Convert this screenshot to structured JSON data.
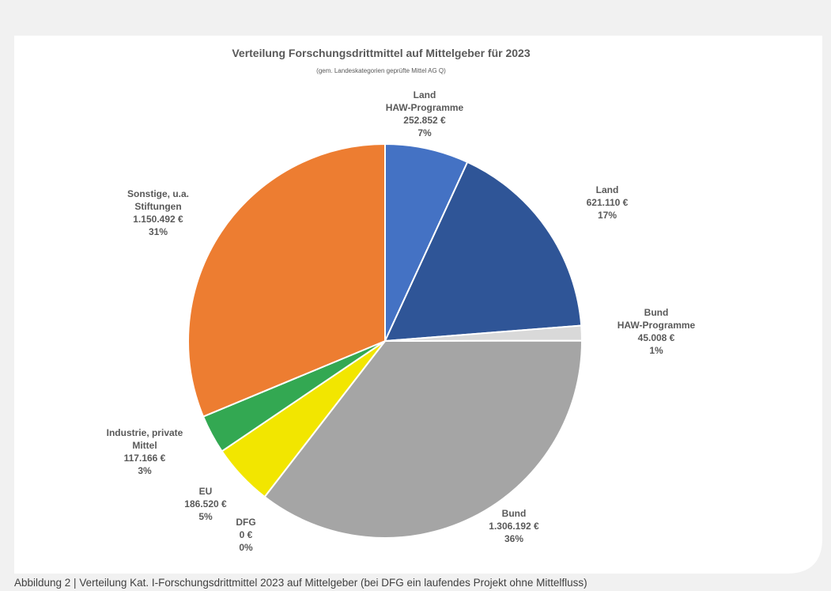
{
  "chart_data": {
    "type": "pie",
    "title": "Verteilung Forschungsdrittmittel auf Mittelgeber für 2023",
    "subtitle": "(gem. Landeskategorien geprüfte Mittel AG Q)",
    "categories": [
      "Land\nHAW-Programme",
      "Land",
      "Bund\nHAW-Programme",
      "Bund",
      "DFG",
      "EU",
      "Industrie, private\nMittel",
      "Sonstige, u.a.\nStiftungen"
    ],
    "values": [
      252852,
      621110,
      45008,
      1306192,
      0,
      186520,
      117166,
      1150492
    ],
    "value_labels": [
      "252.852 €",
      "621.110 €",
      "45.008 €",
      "1.306.192 €",
      "0 €",
      "186.520 €",
      "117.166 €",
      "1.150.492 €"
    ],
    "percent_labels": [
      "7%",
      "17%",
      "1%",
      "36%",
      "0%",
      "5%",
      "3%",
      "31%"
    ],
    "colors": [
      "#4472c4",
      "#2f5597",
      "#d9d9d9",
      "#a5a5a5",
      "#7f7f7f",
      "#f2e600",
      "#33a852",
      "#ed7d31"
    ]
  },
  "caption": "Abbildung 2 | Verteilung Kat. I-Forschungsdrittmittel 2023 auf Mittelgeber (bei DFG ein laufendes Projekt ohne Mittelfluss)"
}
